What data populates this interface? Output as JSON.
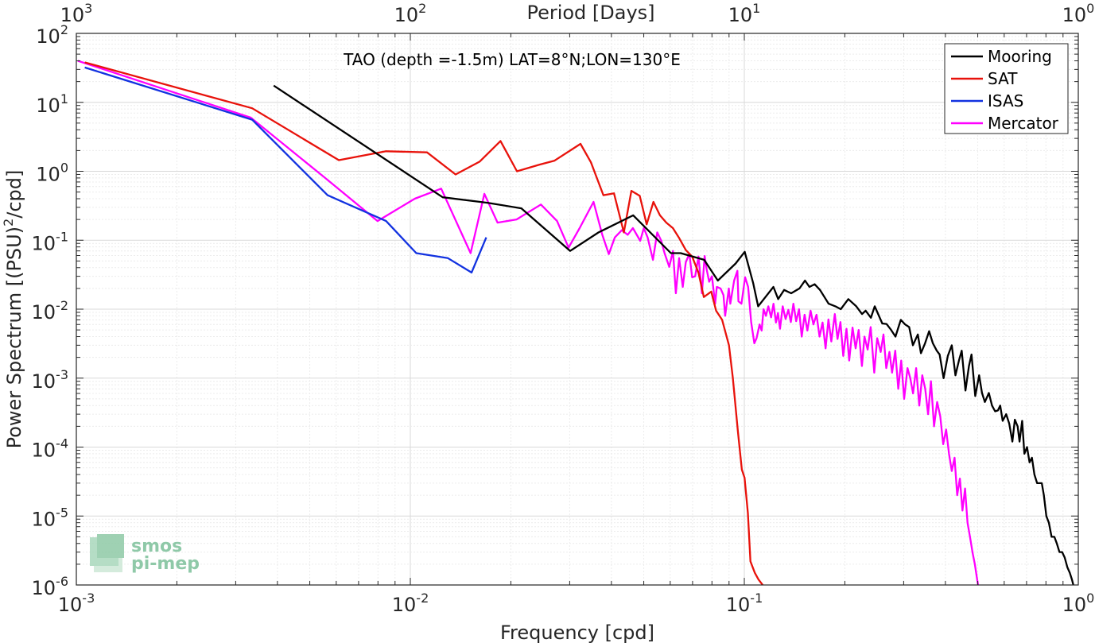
{
  "chart_data": {
    "type": "line",
    "title": "TAO (depth =-1.5m) LAT=8°N;LON=130°E",
    "xlabel": "Frequency [cpd]",
    "ylabel": "Power Spectrum [(PSU)2/cpd]",
    "x2label": "Period [Days]",
    "xscale": "log",
    "yscale": "log",
    "xlim": [
      0.001,
      1
    ],
    "ylim": [
      1e-06,
      100
    ],
    "grid": true,
    "legend_position": "top-right",
    "x_ticks": [
      {
        "base": "10",
        "exp": "-3"
      },
      {
        "base": "10",
        "exp": "-2"
      },
      {
        "base": "10",
        "exp": "-1"
      },
      {
        "base": "10",
        "exp": "0"
      }
    ],
    "x2_ticks": [
      {
        "base": "10",
        "exp": "3"
      },
      {
        "base": "10",
        "exp": "2"
      },
      {
        "base": "10",
        "exp": "1"
      },
      {
        "base": "10",
        "exp": "0"
      }
    ],
    "y_ticks": [
      {
        "base": "10",
        "exp": "2"
      },
      {
        "base": "10",
        "exp": "1"
      },
      {
        "base": "10",
        "exp": "0"
      },
      {
        "base": "10",
        "exp": "-1"
      },
      {
        "base": "10",
        "exp": "-2"
      },
      {
        "base": "10",
        "exp": "-3"
      },
      {
        "base": "10",
        "exp": "-4"
      },
      {
        "base": "10",
        "exp": "-5"
      },
      {
        "base": "10",
        "exp": "-6"
      }
    ],
    "series": [
      {
        "name": "Mooring",
        "color": "#000000",
        "points": [
          [
            0.0039,
            17.5
          ],
          [
            0.0125,
            0.42
          ],
          [
            0.017,
            0.35
          ],
          [
            0.0215,
            0.29
          ],
          [
            0.0301,
            0.07
          ],
          [
            0.0366,
            0.13
          ],
          [
            0.0465,
            0.23
          ],
          [
            0.0603,
            0.065
          ],
          [
            0.0645,
            0.065
          ],
          [
            0.0758,
            0.052
          ],
          [
            0.0833,
            0.026
          ],
          [
            0.0942,
            0.046
          ],
          [
            0.1003,
            0.068
          ],
          [
            0.1063,
            0.024
          ],
          [
            0.11,
            0.011
          ],
          [
            0.1157,
            0.015
          ],
          [
            0.1222,
            0.021
          ],
          [
            0.1263,
            0.014
          ],
          [
            0.1316,
            0.019
          ],
          [
            0.1381,
            0.017
          ],
          [
            0.1463,
            0.02
          ],
          [
            0.1519,
            0.026
          ],
          [
            0.1567,
            0.021
          ],
          [
            0.1624,
            0.023
          ],
          [
            0.1685,
            0.019
          ],
          [
            0.1788,
            0.012
          ],
          [
            0.1873,
            0.011
          ],
          [
            0.1945,
            0.01
          ],
          [
            0.2049,
            0.014
          ],
          [
            0.2164,
            0.011
          ],
          [
            0.2251,
            0.0085
          ],
          [
            0.2308,
            0.0095
          ],
          [
            0.2394,
            0.0075
          ],
          [
            0.2457,
            0.011
          ],
          [
            0.2589,
            0.0062
          ],
          [
            0.2665,
            0.0061
          ],
          [
            0.2751,
            0.005
          ],
          [
            0.2836,
            0.004
          ],
          [
            0.2942,
            0.007
          ],
          [
            0.303,
            0.006
          ],
          [
            0.3116,
            0.0055
          ],
          [
            0.3198,
            0.003
          ],
          [
            0.3308,
            0.0043
          ],
          [
            0.3379,
            0.0023
          ],
          [
            0.3476,
            0.0032
          ],
          [
            0.3575,
            0.0048
          ],
          [
            0.3669,
            0.0032
          ],
          [
            0.3769,
            0.0025
          ],
          [
            0.3844,
            0.0022
          ],
          [
            0.395,
            0.001
          ],
          [
            0.4067,
            0.0021
          ],
          [
            0.4179,
            0.003
          ],
          [
            0.4286,
            0.0011
          ],
          [
            0.4391,
            0.0018
          ],
          [
            0.4476,
            0.0025
          ],
          [
            0.4594,
            0.00066
          ],
          [
            0.4705,
            0.0015
          ],
          [
            0.4788,
            0.0022
          ],
          [
            0.4915,
            0.00055
          ],
          [
            0.5048,
            0.0011
          ],
          [
            0.5149,
            0.00061
          ],
          [
            0.525,
            0.00045
          ],
          [
            0.5398,
            0.00061
          ],
          [
            0.5517,
            0.0004
          ],
          [
            0.5635,
            0.00033
          ],
          [
            0.5746,
            0.00034
          ],
          [
            0.5838,
            0.0004
          ],
          [
            0.5936,
            0.00024
          ],
          [
            0.6081,
            0.0003
          ],
          [
            0.6209,
            0.00022
          ],
          [
            0.6349,
            0.00012
          ],
          [
            0.6456,
            0.00025
          ],
          [
            0.6583,
            0.0002
          ],
          [
            0.6667,
            0.00012
          ],
          [
            0.6791,
            0.00024
          ],
          [
            0.6897,
            8e-05
          ],
          [
            0.7023,
            0.0001
          ],
          [
            0.7146,
            6e-05
          ],
          [
            0.7264,
            7e-05
          ],
          [
            0.739,
            4e-05
          ],
          [
            0.7526,
            3e-05
          ],
          [
            0.7634,
            3e-05
          ],
          [
            0.7774,
            3e-05
          ],
          [
            0.7887,
            2e-05
          ],
          [
            0.8021,
            1e-05
          ],
          [
            0.8166,
            8e-06
          ],
          [
            0.8318,
            5e-06
          ],
          [
            0.8479,
            5e-06
          ],
          [
            0.8625,
            4e-06
          ],
          [
            0.878,
            3e-06
          ],
          [
            0.8947,
            3e-06
          ],
          [
            0.9105,
            2.5e-06
          ],
          [
            0.9275,
            1.8e-06
          ],
          [
            0.9432,
            1.5e-06
          ],
          [
            0.9573,
            1.2e-06
          ],
          [
            0.9718,
            9e-07
          ]
        ]
      },
      {
        "name": "SAT",
        "color": "#e8120b",
        "points": [
          [
            0.00106,
            38
          ],
          [
            0.00336,
            8.2
          ],
          [
            0.00611,
            1.45
          ],
          [
            0.00846,
            1.95
          ],
          [
            0.01122,
            1.88
          ],
          [
            0.01366,
            0.9
          ],
          [
            0.01612,
            1.38
          ],
          [
            0.01862,
            2.75
          ],
          [
            0.02086,
            1.0
          ],
          [
            0.02437,
            1.25
          ],
          [
            0.02698,
            1.42
          ],
          [
            0.03232,
            2.5
          ],
          [
            0.03474,
            1.35
          ],
          [
            0.03786,
            0.45
          ],
          [
            0.04072,
            0.48
          ],
          [
            0.04357,
            0.13
          ],
          [
            0.04592,
            0.52
          ],
          [
            0.04864,
            0.44
          ],
          [
            0.05101,
            0.17
          ],
          [
            0.05344,
            0.36
          ],
          [
            0.05591,
            0.23
          ],
          [
            0.0584,
            0.18
          ],
          [
            0.06112,
            0.15
          ],
          [
            0.06364,
            0.11
          ],
          [
            0.06679,
            0.072
          ],
          [
            0.06979,
            0.058
          ],
          [
            0.07288,
            0.034
          ],
          [
            0.07563,
            0.015
          ],
          [
            0.07961,
            0.018
          ],
          [
            0.08231,
            0.0095
          ],
          [
            0.08581,
            0.007
          ],
          [
            0.08998,
            0.003
          ],
          [
            0.09242,
            0.001
          ],
          [
            0.09565,
            0.00017
          ],
          [
            0.09834,
            4.7e-05
          ],
          [
            0.10016,
            3.6e-05
          ],
          [
            0.10247,
            1.1e-05
          ],
          [
            0.1043,
            2.2e-06
          ],
          [
            0.10753,
            1.5e-06
          ],
          [
            0.11025,
            1.2e-06
          ],
          [
            0.11351,
            1e-06
          ]
        ]
      },
      {
        "name": "ISAS",
        "color": "#1232e0",
        "points": [
          [
            0.00106,
            32
          ],
          [
            0.00336,
            5.6
          ],
          [
            0.00565,
            0.45
          ],
          [
            0.00846,
            0.19
          ],
          [
            0.01042,
            0.065
          ],
          [
            0.01296,
            0.055
          ],
          [
            0.01525,
            0.034
          ],
          [
            0.01688,
            0.11
          ]
        ]
      },
      {
        "name": "Mercator",
        "color": "#ff00ff",
        "points": [
          [
            0.00101,
            40
          ],
          [
            0.00333,
            6.0
          ],
          [
            0.00556,
            0.8
          ],
          [
            0.00798,
            0.19
          ],
          [
            0.01031,
            0.4
          ],
          [
            0.01237,
            0.56
          ],
          [
            0.01515,
            0.065
          ],
          [
            0.01666,
            0.47
          ],
          [
            0.01825,
            0.18
          ],
          [
            0.0208,
            0.2
          ],
          [
            0.0246,
            0.33
          ],
          [
            0.0275,
            0.19
          ],
          [
            0.02978,
            0.078
          ],
          [
            0.03213,
            0.15
          ],
          [
            0.03536,
            0.36
          ],
          [
            0.03757,
            0.12
          ],
          [
            0.03929,
            0.063
          ],
          [
            0.04096,
            0.11
          ],
          [
            0.04298,
            0.14
          ],
          [
            0.04473,
            0.12
          ],
          [
            0.04638,
            0.15
          ],
          [
            0.04878,
            0.098
          ],
          [
            0.05,
            0.15
          ],
          [
            0.05134,
            0.11
          ],
          [
            0.05327,
            0.052
          ],
          [
            0.05485,
            0.13
          ],
          [
            0.05642,
            0.098
          ],
          [
            0.05769,
            0.065
          ],
          [
            0.05961,
            0.041
          ],
          [
            0.06116,
            0.07
          ],
          [
            0.06237,
            0.017
          ],
          [
            0.0638,
            0.055
          ],
          [
            0.06541,
            0.021
          ],
          [
            0.06679,
            0.048
          ],
          [
            0.06845,
            0.064
          ],
          [
            0.06981,
            0.029
          ],
          [
            0.07125,
            0.03
          ],
          [
            0.07292,
            0.058
          ],
          [
            0.07465,
            0.017
          ],
          [
            0.07606,
            0.059
          ],
          [
            0.07711,
            0.038
          ],
          [
            0.07846,
            0.025
          ],
          [
            0.08,
            0.03
          ],
          [
            0.08178,
            0.012
          ],
          [
            0.08274,
            0.021
          ],
          [
            0.08488,
            0.02
          ],
          [
            0.08662,
            0.016
          ],
          [
            0.08763,
            0.008
          ],
          [
            0.08984,
            0.02
          ],
          [
            0.09082,
            0.012
          ],
          [
            0.09322,
            0.026
          ],
          [
            0.09534,
            0.036
          ],
          [
            0.096,
            0.013
          ],
          [
            0.09803,
            0.012
          ],
          [
            0.10053,
            0.029
          ],
          [
            0.10264,
            0.021
          ],
          [
            0.10481,
            0.0065
          ],
          [
            0.10715,
            0.0032
          ],
          [
            0.1088,
            0.0038
          ],
          [
            0.11112,
            0.006
          ],
          [
            0.11272,
            0.0049
          ],
          [
            0.11418,
            0.01
          ],
          [
            0.11605,
            0.008
          ],
          [
            0.11799,
            0.011
          ],
          [
            0.12026,
            0.0076
          ],
          [
            0.12231,
            0.012
          ],
          [
            0.1244,
            0.0064
          ],
          [
            0.12607,
            0.0088
          ],
          [
            0.12794,
            0.0052
          ],
          [
            0.13035,
            0.011
          ],
          [
            0.13288,
            0.0072
          ],
          [
            0.13546,
            0.0098
          ],
          [
            0.13782,
            0.0065
          ],
          [
            0.14023,
            0.012
          ],
          [
            0.14296,
            0.0067
          ],
          [
            0.14581,
            0.01
          ],
          [
            0.14853,
            0.004
          ],
          [
            0.1515,
            0.0083
          ],
          [
            0.15442,
            0.0049
          ],
          [
            0.15784,
            0.0095
          ],
          [
            0.16104,
            0.006
          ],
          [
            0.16452,
            0.0083
          ],
          [
            0.168,
            0.004
          ],
          [
            0.17153,
            0.0064
          ],
          [
            0.17516,
            0.0027
          ],
          [
            0.17863,
            0.0071
          ],
          [
            0.18221,
            0.0034
          ],
          [
            0.18658,
            0.0085
          ],
          [
            0.19017,
            0.0037
          ],
          [
            0.19407,
            0.0065
          ],
          [
            0.19775,
            0.0021
          ],
          [
            0.20223,
            0.0052
          ],
          [
            0.20613,
            0.0018
          ],
          [
            0.21091,
            0.0054
          ],
          [
            0.2155,
            0.0027
          ],
          [
            0.21993,
            0.005
          ],
          [
            0.225,
            0.0015
          ],
          [
            0.229,
            0.004
          ],
          [
            0.234,
            0.0026
          ],
          [
            0.239,
            0.0055
          ],
          [
            0.245,
            0.0012
          ],
          [
            0.25,
            0.0038
          ],
          [
            0.256,
            0.0024
          ],
          [
            0.261,
            0.0043
          ],
          [
            0.266,
            0.0014
          ],
          [
            0.272,
            0.0024
          ],
          [
            0.277,
            0.0012
          ],
          [
            0.283,
            0.0025
          ],
          [
            0.289,
            0.0007
          ],
          [
            0.295,
            0.0018
          ],
          [
            0.301,
            0.0005
          ],
          [
            0.308,
            0.0014
          ],
          [
            0.314,
            0.001
          ],
          [
            0.32,
            0.0006
          ],
          [
            0.327,
            0.0014
          ],
          [
            0.334,
            0.0004
          ],
          [
            0.341,
            0.0011
          ],
          [
            0.348,
            0.0007
          ],
          [
            0.355,
            0.0003
          ],
          [
            0.362,
            0.0009
          ],
          [
            0.37,
            0.0002
          ],
          [
            0.378,
            0.00045
          ],
          [
            0.386,
            0.00028
          ],
          [
            0.394,
            0.00011
          ],
          [
            0.402,
            0.00018
          ],
          [
            0.41,
            8e-05
          ],
          [
            0.418,
            4.5e-05
          ],
          [
            0.426,
            7e-05
          ],
          [
            0.434,
            2e-05
          ],
          [
            0.442,
            3.5e-05
          ],
          [
            0.45,
            1.2e-05
          ],
          [
            0.458,
            2.5e-05
          ],
          [
            0.466,
            8e-06
          ],
          [
            0.474,
            5e-06
          ],
          [
            0.482,
            3e-06
          ],
          [
            0.49,
            2e-06
          ],
          [
            0.498,
            1.2e-06
          ],
          [
            0.505,
            8e-07
          ]
        ]
      }
    ]
  },
  "logo": {
    "line1": "smos",
    "line2": "pi-mep"
  }
}
